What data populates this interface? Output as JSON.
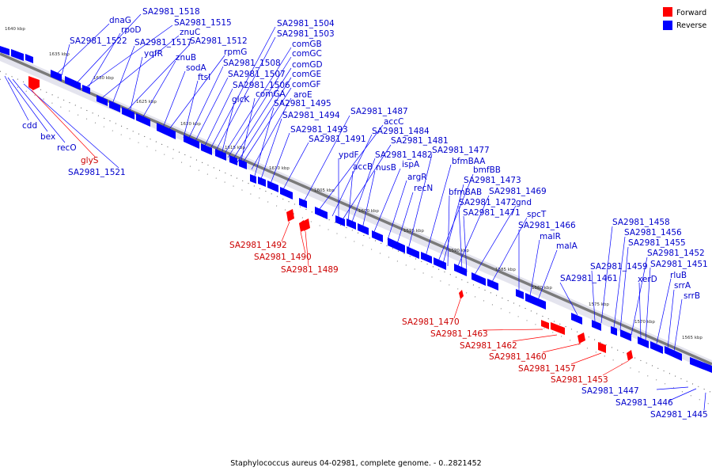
{
  "legend": {
    "forward": {
      "label": "Forward",
      "color": "#ff0000"
    },
    "reverse": {
      "label": "Reverse",
      "color": "#0000ff"
    }
  },
  "caption": "Staphylococcus aureus 04-02981, complete genome. - 0..2821452",
  "kbp_ticks": [
    "1640 kbp",
    "1635 kbp",
    "1630 kbp",
    "1625 kbp",
    "1620 kbp",
    "1615 kbp",
    "1610 kbp",
    "1605 kbp",
    "1600 kbp",
    "1595 kbp",
    "1590 kbp",
    "1585 kbp",
    "1580 kbp",
    "1575 kbp",
    "1570 kbp",
    "1565 kbp"
  ],
  "reverse_labels": [
    "SA2981_1518",
    "dnaG",
    "SA2981_1515",
    "rpoD",
    "znuC",
    "SA2981_1522",
    "SA2981_1517",
    "SA2981_1512",
    "yqfR",
    "znuB",
    "rpmG",
    "sodA",
    "SA2981_1508",
    "ftsI",
    "SA2981_1507",
    "SA2981_1506",
    "glcK",
    "SA2981_1504",
    "SA2981_1503",
    "comGB",
    "comGC",
    "comGD",
    "comGE",
    "comGF",
    "comGA",
    "aroE",
    "SA2981_1495",
    "SA2981_1494",
    "SA2981_1493",
    "SA2981_1491",
    "SA2981_1487",
    "accC",
    "SA2981_1484",
    "SA2981_1481",
    "ypdF",
    "SA2981_1482",
    "accB",
    "nusB",
    "ispA",
    "argR",
    "recN",
    "SA2981_1477",
    "bfmBAA",
    "bmfBB",
    "SA2981_1473",
    "bfmBAB",
    "SA2981_1469",
    "SA2981_1472",
    "gnd",
    "SA2981_1471",
    "spcT",
    "SA2981_1466",
    "malR",
    "malA",
    "SA2981_1461",
    "SA2981_1458",
    "SA2981_1456",
    "SA2981_1455",
    "SA2981_1459",
    "SA2981_1452",
    "xerD",
    "SA2981_1451",
    "rluB",
    "srrA",
    "srrB",
    "cdd",
    "bex",
    "recO",
    "SA2981_1521",
    "SA2981_1447",
    "SA2981_1446",
    "SA2981_1445"
  ],
  "forward_labels": [
    "glyS",
    "SA2981_1492",
    "SA2981_1490",
    "SA2981_1489",
    "SA2981_1470",
    "SA2981_1463",
    "SA2981_1462",
    "SA2981_1460",
    "SA2981_1457",
    "SA2981_1453"
  ]
}
